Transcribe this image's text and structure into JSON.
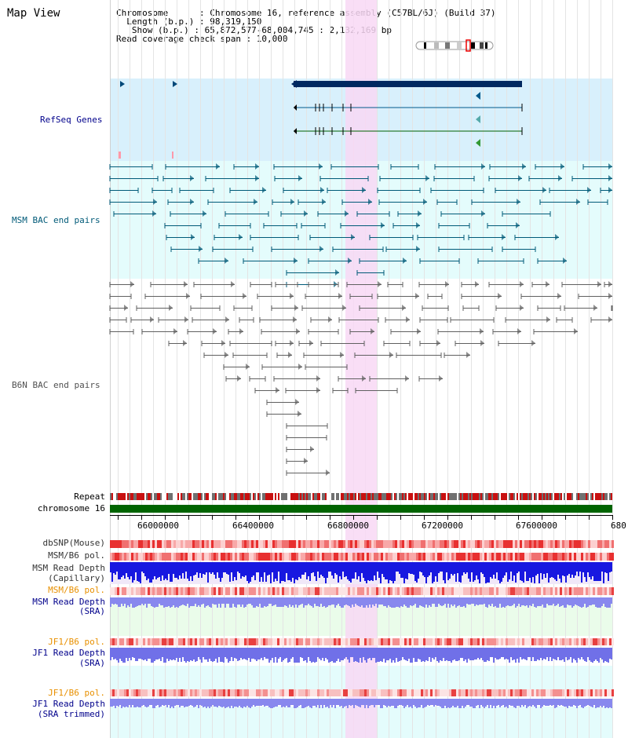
{
  "title": "Map View",
  "info": {
    "chromosome": "Chromosome      : Chromosome 16, reference assembly (C57BL/6J) (Build 37)",
    "length": "  Length (b.p.) : 98,319,150",
    "show": "   Show (b.p.) : 65,872,577-68,004,745 : 2,132,169 bp",
    "coverage": "Read coverage check span : 10,000"
  },
  "tracks": {
    "refseq": "RefSeq Genes",
    "msm_bac": "MSM BAC end pairs",
    "b6n_bac": "B6N BAC end pairs",
    "repeat": "Repeat",
    "chromosome": "chromosome 16",
    "dbsnp": "dbSNP(Mouse)",
    "msm_b6_pol1": "MSM/B6 pol.",
    "msm_depth_cap_1": "MSM Read Depth",
    "msm_depth_cap_2": "(Capillary)",
    "msm_b6_pol2": "MSM/B6 pol.",
    "msm_depth_sra_1": "MSM Read Depth",
    "msm_depth_sra_2": "(SRA)",
    "jf1_pol1": "JF1/B6 pol.",
    "jf1_depth_1": "JF1 Read Depth",
    "jf1_depth_2": "(SRA)",
    "jf1_pol2": "JF1/B6 pol.",
    "jf1_trim_1": "JF1 Read Depth",
    "jf1_trim_2": "(SRA trimmed)"
  },
  "axis": {
    "ticks": [
      "66000000",
      "66400000",
      "66800000",
      "67200000",
      "67600000",
      "680"
    ]
  },
  "colors": {
    "refseq_bg": "#d8f0fc",
    "msm_bg": "#e4fcfc",
    "highlight": "#f8d8f4",
    "chromosome": "#006400",
    "gene": "#002860",
    "msm_line": "#005a78",
    "b6n_line": "#606060",
    "label_blue": "#00008b",
    "label_teal": "#005a78",
    "label_gray": "#505050",
    "label_orange": "#e89000",
    "label_black": "#000000"
  }
}
